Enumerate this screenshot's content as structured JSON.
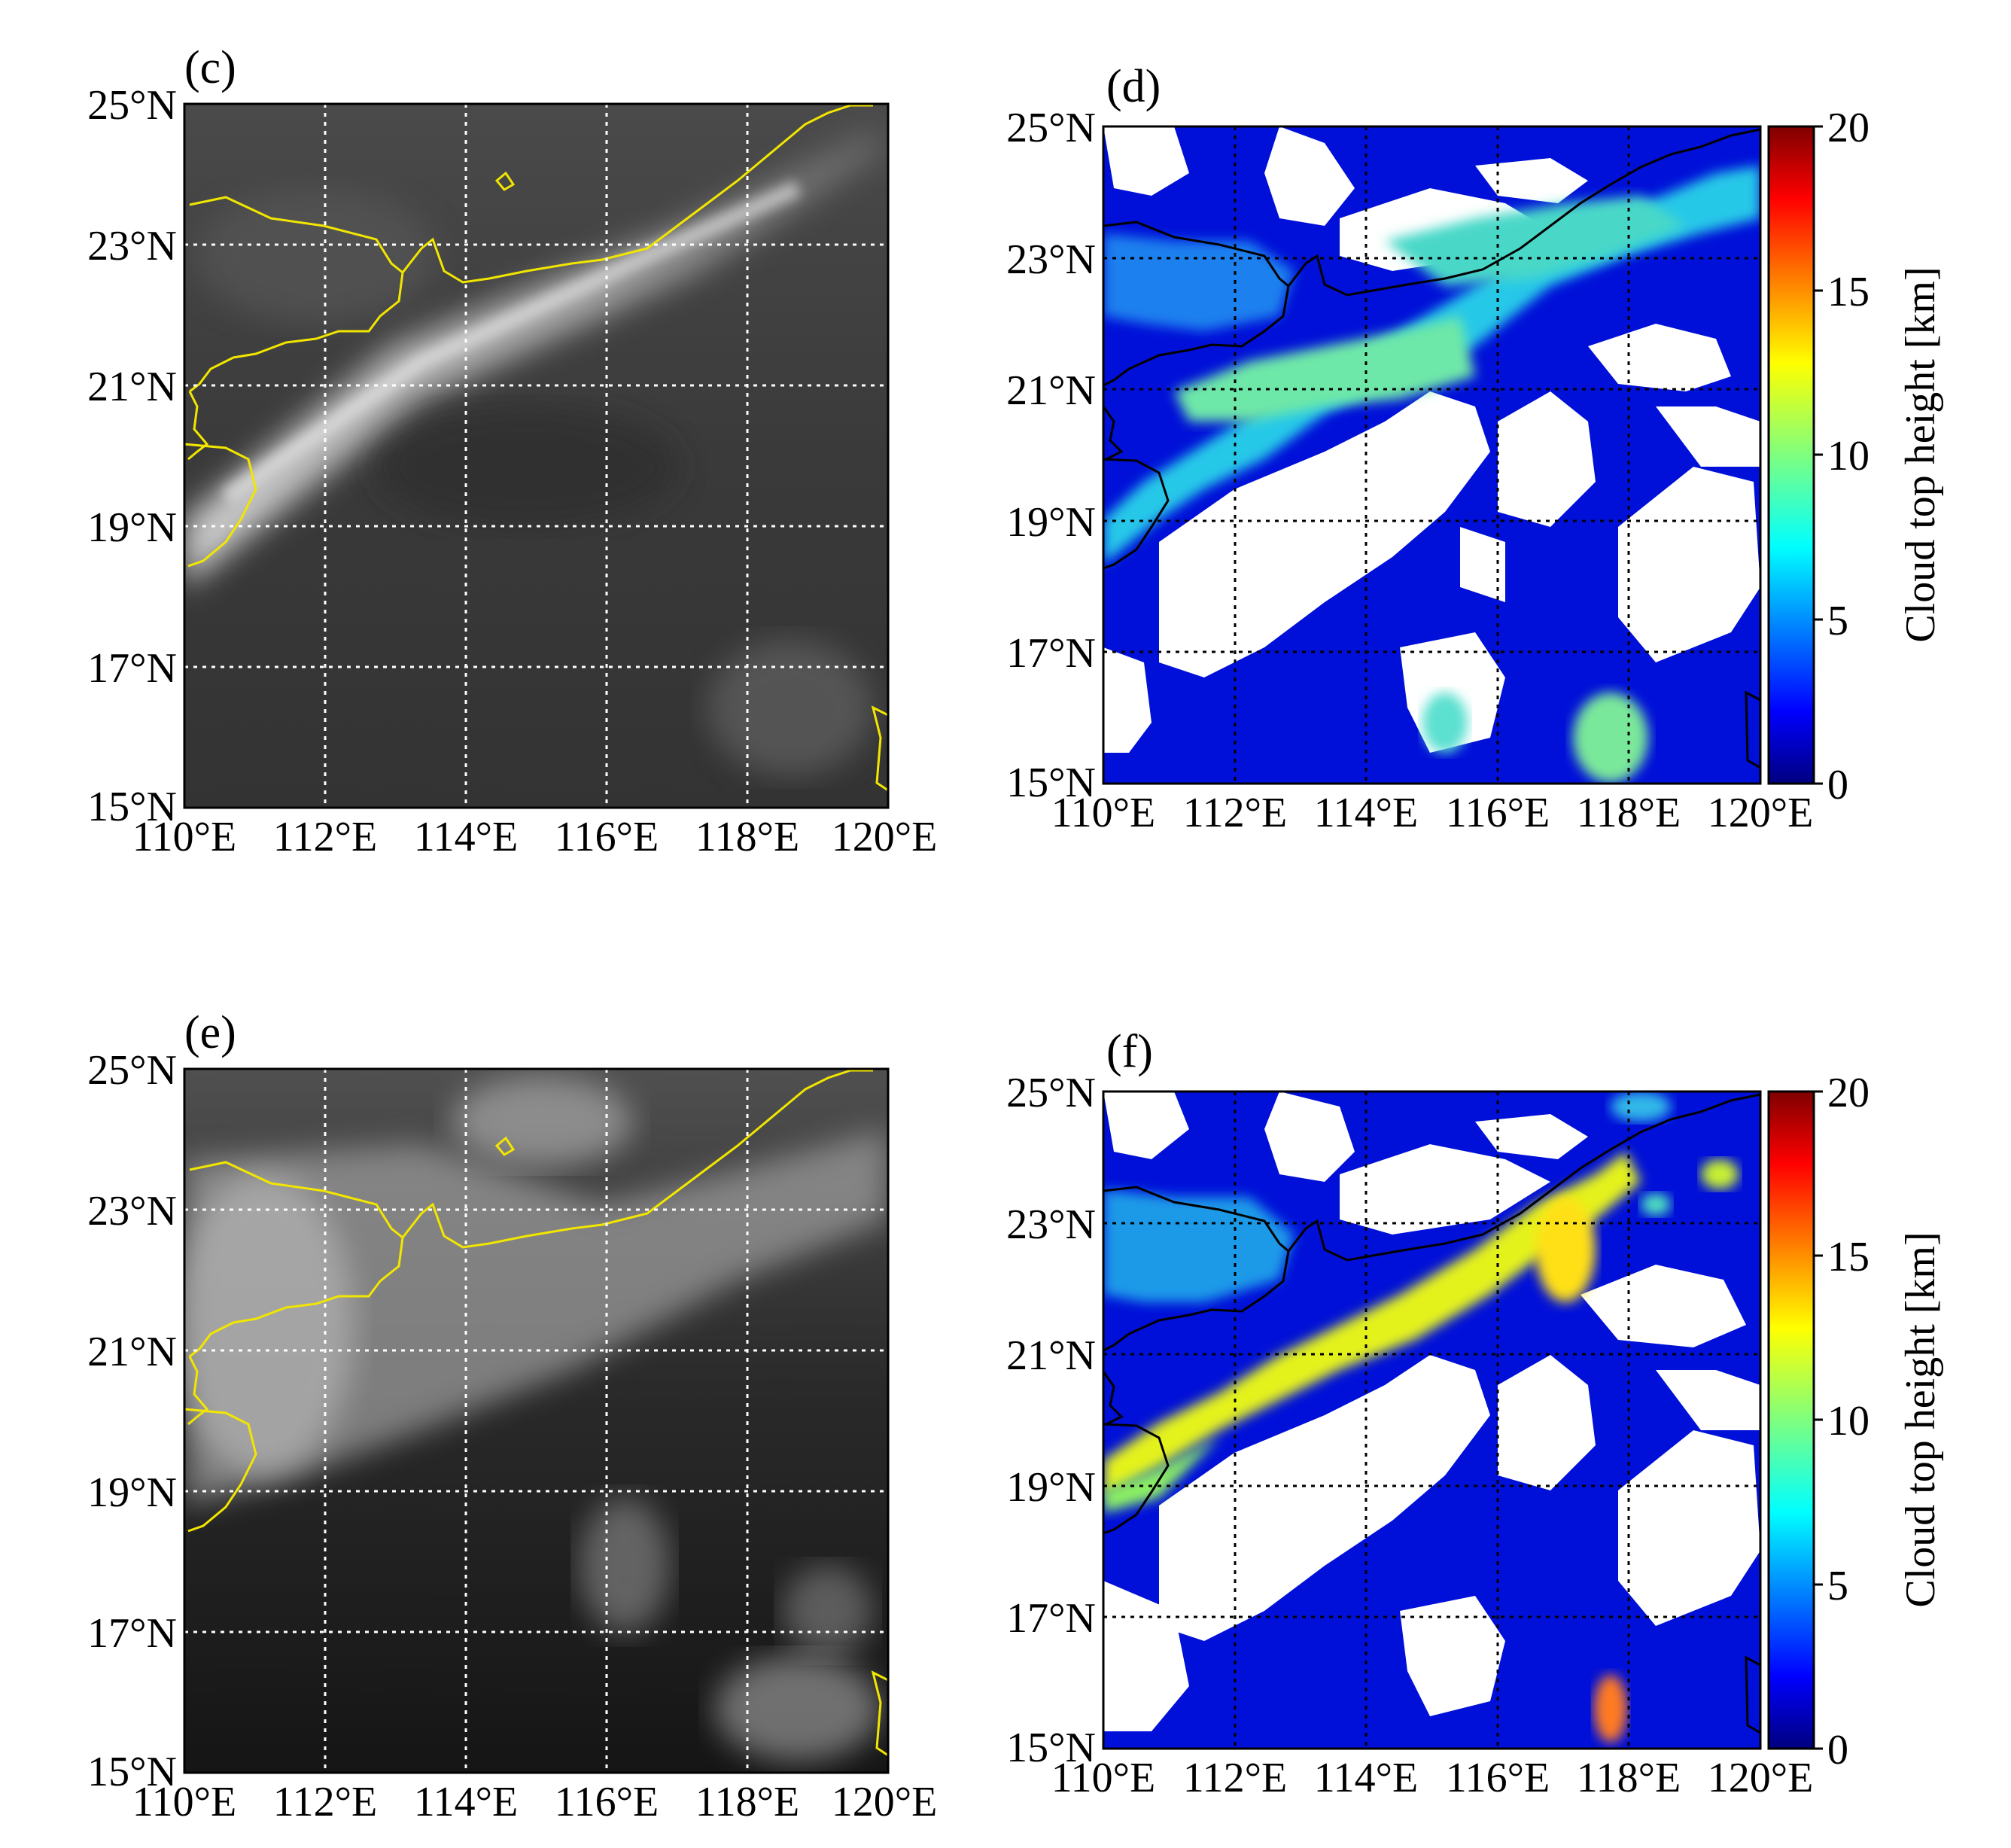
{
  "figure": {
    "panels": [
      {
        "id": "c",
        "label": "(c)",
        "kind": "grayscale",
        "lat_ticks": [
          "25°N",
          "23°N",
          "21°N",
          "19°N",
          "17°N",
          "15°N"
        ],
        "lon_ticks": [
          "110°E",
          "112°E",
          "114°E",
          "116°E",
          "118°E",
          "120°E"
        ],
        "extent": {
          "lon": [
            110,
            120
          ],
          "lat": [
            15,
            25
          ]
        },
        "coastline_color": "#f2e600",
        "grid": true
      },
      {
        "id": "d",
        "label": "(d)",
        "kind": "cloud-top-height",
        "lat_ticks": [
          "25°N",
          "23°N",
          "21°N",
          "19°N",
          "17°N",
          "15°N"
        ],
        "lon_ticks": [
          "110°E",
          "112°E",
          "114°E",
          "116°E",
          "118°E",
          "120°E"
        ],
        "extent": {
          "lon": [
            110,
            120
          ],
          "lat": [
            15,
            25
          ]
        },
        "coastline_color": "#000000",
        "grid": true,
        "colorbar": {
          "label": "Cloud top height [km]",
          "ticks": [
            "0",
            "5",
            "10",
            "15",
            "20"
          ],
          "range": [
            0,
            20
          ],
          "cmap": "jet"
        }
      },
      {
        "id": "e",
        "label": "(e)",
        "kind": "grayscale",
        "lat_ticks": [
          "25°N",
          "23°N",
          "21°N",
          "19°N",
          "17°N",
          "15°N"
        ],
        "lon_ticks": [
          "110°E",
          "112°E",
          "114°E",
          "116°E",
          "118°E",
          "120°E"
        ],
        "extent": {
          "lon": [
            110,
            120
          ],
          "lat": [
            15,
            25
          ]
        },
        "coastline_color": "#f2e600",
        "grid": true
      },
      {
        "id": "f",
        "label": "(f)",
        "kind": "cloud-top-height",
        "lat_ticks": [
          "25°N",
          "23°N",
          "21°N",
          "19°N",
          "17°N",
          "15°N"
        ],
        "lon_ticks": [
          "110°E",
          "112°E",
          "114°E",
          "116°E",
          "118°E",
          "120°E"
        ],
        "extent": {
          "lon": [
            110,
            120
          ],
          "lat": [
            15,
            25
          ]
        },
        "coastline_color": "#000000",
        "grid": true,
        "colorbar": {
          "label": "Cloud top height [km]",
          "ticks": [
            "0",
            "5",
            "10",
            "15",
            "20"
          ],
          "range": [
            0,
            20
          ],
          "cmap": "jet"
        }
      }
    ]
  }
}
